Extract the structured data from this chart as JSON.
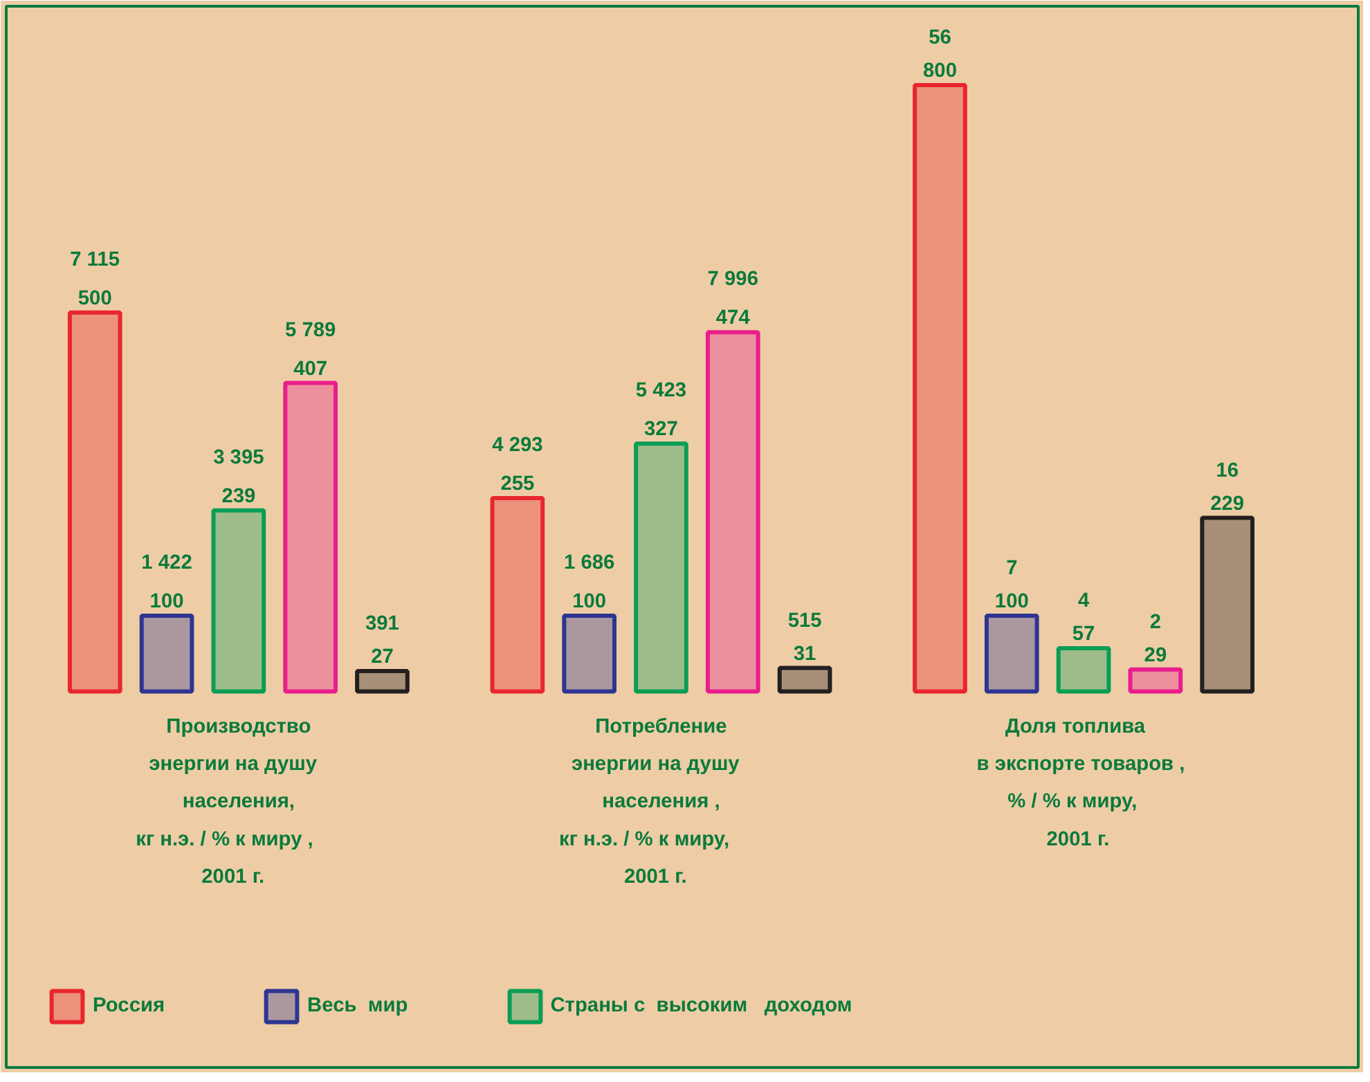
{
  "chart_data": {
    "type": "bar",
    "categories": [
      "Производство\nэнергии  на  душу\nнаселения,\nкг   н.э. / %   к  миру ,\n2001   г.",
      "Потребление\nэнергии  на  душу\nнаселения ,\nкг   н.э. / %    к  миру,\n2001   г.",
      "Доля    топлива\nв экспорте  товаров ,\n% / %    к  миру,\n2001   г."
    ],
    "series": [
      {
        "name": "Россия",
        "color": "#e8262e",
        "values": [
          500,
          255,
          800
        ]
      },
      {
        "name": "Весь  мир",
        "color": "#2e3591",
        "values": [
          100,
          100,
          100
        ]
      },
      {
        "name": "Страны с  высоким   доходом",
        "color": "#0a9d55",
        "values": [
          239,
          327,
          57
        ]
      },
      {
        "color": "#e91e8c",
        "values": [
          407,
          474,
          29
        ]
      },
      {
        "color": "#231f20",
        "values": [
          27,
          31,
          229
        ]
      }
    ],
    "data_labels": true,
    "annotations": [
      "7 115",
      "1 422",
      "3 395",
      "5 789",
      "391",
      "4 293",
      "1 686",
      "5 423",
      "7 996",
      "515",
      "56",
      "7",
      "4",
      "2",
      "16"
    ],
    "legend": "bottom",
    "grid": false,
    "tick_labels": "x"
  }
}
